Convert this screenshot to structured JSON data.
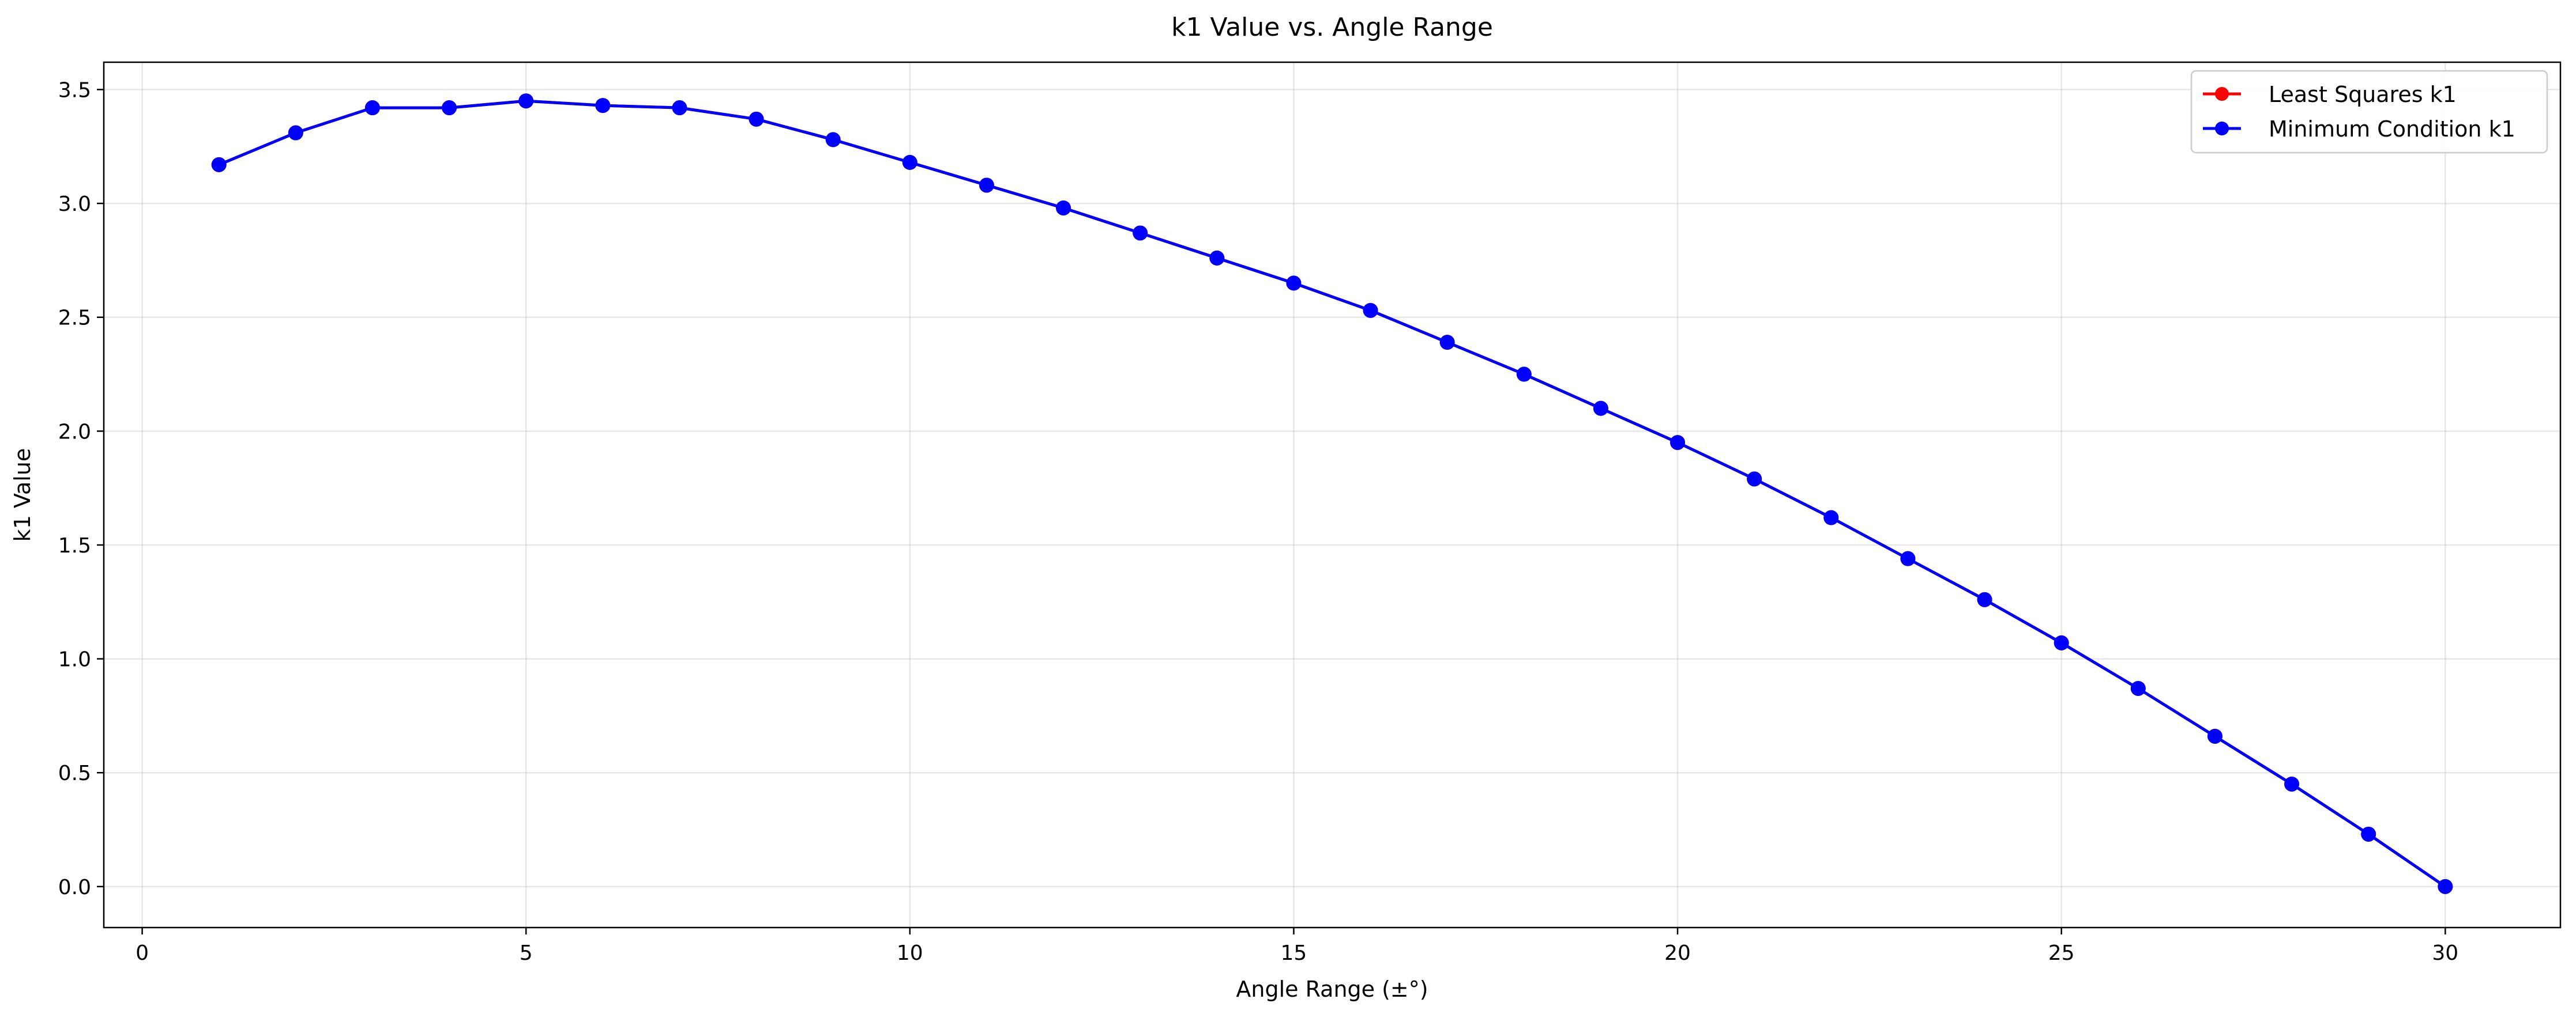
{
  "chart_data": {
    "type": "line",
    "title": "k1 Value vs. Angle Range",
    "xlabel": "Angle Range (±°)",
    "ylabel": "k1 Value",
    "xlim": [
      -0.5,
      31.5
    ],
    "ylim": [
      -0.18,
      3.62
    ],
    "xticks": [
      0,
      5,
      10,
      15,
      20,
      25,
      30
    ],
    "yticks": [
      0.0,
      0.5,
      1.0,
      1.5,
      2.0,
      2.5,
      3.0,
      3.5
    ],
    "xtick_labels": [
      "0",
      "5",
      "10",
      "15",
      "20",
      "25",
      "30"
    ],
    "ytick_labels": [
      "0.0",
      "0.5",
      "1.0",
      "1.5",
      "2.0",
      "2.5",
      "3.0",
      "3.5"
    ],
    "grid": true,
    "legend_position": "top-right",
    "x": [
      1,
      2,
      3,
      4,
      5,
      6,
      7,
      8,
      9,
      10,
      11,
      12,
      13,
      14,
      15,
      16,
      17,
      18,
      19,
      20,
      21,
      22,
      23,
      24,
      25,
      26,
      27,
      28,
      29,
      30
    ],
    "series": [
      {
        "name": "Least Squares k1",
        "color": "#ff0000",
        "values": [
          3.17,
          3.31,
          3.42,
          3.42,
          3.45,
          3.43,
          3.42,
          3.37,
          3.28,
          3.18,
          3.08,
          2.98,
          2.87,
          2.76,
          2.65,
          2.53,
          2.39,
          2.25,
          2.1,
          1.95,
          1.79,
          1.62,
          1.44,
          1.26,
          1.07,
          0.87,
          0.66,
          0.45,
          0.23,
          0.0
        ]
      },
      {
        "name": "Minimum Condition k1",
        "color": "#0000ff",
        "values": [
          3.17,
          3.31,
          3.42,
          3.42,
          3.45,
          3.43,
          3.42,
          3.37,
          3.28,
          3.18,
          3.08,
          2.98,
          2.87,
          2.76,
          2.65,
          2.53,
          2.39,
          2.25,
          2.1,
          1.95,
          1.79,
          1.62,
          1.44,
          1.26,
          1.07,
          0.87,
          0.66,
          0.45,
          0.23,
          0.0
        ]
      }
    ]
  }
}
